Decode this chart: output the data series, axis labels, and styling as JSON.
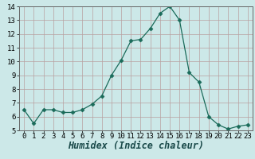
{
  "x": [
    0,
    1,
    2,
    3,
    4,
    5,
    6,
    7,
    8,
    9,
    10,
    11,
    12,
    13,
    14,
    15,
    16,
    17,
    18,
    19,
    20,
    21,
    22,
    23
  ],
  "y": [
    6.5,
    5.5,
    6.5,
    6.5,
    6.3,
    6.3,
    6.5,
    6.9,
    7.5,
    9.0,
    10.1,
    11.5,
    11.6,
    12.4,
    13.5,
    14.0,
    13.0,
    9.2,
    8.5,
    6.0,
    5.4,
    5.1,
    5.3,
    5.4
  ],
  "xlabel": "Humidex (Indice chaleur)",
  "xlim": [
    -0.5,
    23.5
  ],
  "ylim": [
    5,
    14
  ],
  "yticks": [
    5,
    6,
    7,
    8,
    9,
    10,
    11,
    12,
    13,
    14
  ],
  "xticks": [
    0,
    1,
    2,
    3,
    4,
    5,
    6,
    7,
    8,
    9,
    10,
    11,
    12,
    13,
    14,
    15,
    16,
    17,
    18,
    19,
    20,
    21,
    22,
    23
  ],
  "line_color": "#1a6b5a",
  "marker": "D",
  "marker_size": 2.5,
  "bg_color": "#cce8e8",
  "grid_color": "#b8a0a0",
  "xlabel_fontsize": 8.5,
  "tick_fontsize": 6.5
}
